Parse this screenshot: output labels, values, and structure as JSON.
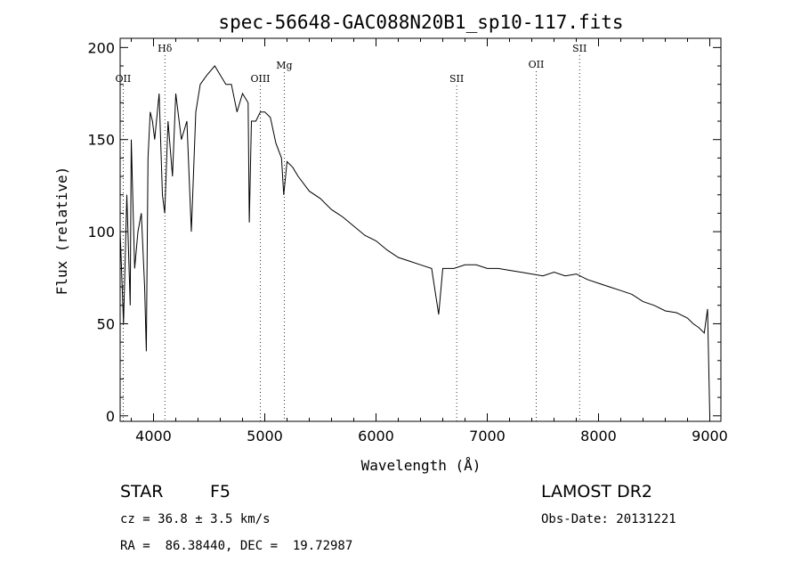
{
  "chart_data": {
    "type": "line",
    "title": "spec-56648-GAC088N20B1_sp10-117.fits",
    "xlabel": "Wavelength (Å)",
    "ylabel": "Flux (relative)",
    "xlim": [
      3700,
      9100
    ],
    "ylim": [
      -3,
      205
    ],
    "x_ticks": [
      4000,
      5000,
      6000,
      7000,
      8000,
      9000
    ],
    "y_ticks": [
      0,
      50,
      100,
      150,
      200
    ],
    "series": [
      {
        "x": [
          3700,
          3730,
          3760,
          3790,
          3800,
          3830,
          3860,
          3890,
          3920,
          3935,
          3950,
          3970,
          3990,
          4010,
          4050,
          4080,
          4101,
          4130,
          4170,
          4200,
          4250,
          4300,
          4340,
          4380,
          4420,
          4480,
          4550,
          4600,
          4650,
          4700,
          4750,
          4800,
          4850,
          4861,
          4880,
          4920,
          4960,
          5000,
          5050,
          5100,
          5150,
          5170,
          5200,
          5250,
          5300,
          5400,
          5500,
          5600,
          5700,
          5800,
          5900,
          6000,
          6100,
          6200,
          6300,
          6400,
          6500,
          6563,
          6600,
          6700,
          6800,
          6900,
          7000,
          7100,
          7200,
          7300,
          7400,
          7500,
          7600,
          7700,
          7800,
          7900,
          8000,
          8100,
          8200,
          8300,
          8400,
          8500,
          8600,
          8700,
          8800,
          8850,
          8900,
          8950,
          8980,
          9000
        ],
        "y": [
          100,
          50,
          120,
          60,
          150,
          80,
          100,
          110,
          70,
          35,
          140,
          165,
          160,
          150,
          175,
          120,
          110,
          160,
          130,
          175,
          150,
          160,
          100,
          165,
          180,
          185,
          190,
          185,
          180,
          180,
          165,
          175,
          170,
          105,
          160,
          160,
          165,
          165,
          162,
          148,
          140,
          120,
          138,
          135,
          130,
          122,
          118,
          112,
          108,
          103,
          98,
          95,
          90,
          86,
          84,
          82,
          80,
          55,
          80,
          80,
          82,
          82,
          80,
          80,
          79,
          78,
          77,
          76,
          78,
          76,
          77,
          74,
          72,
          70,
          68,
          66,
          62,
          60,
          57,
          56,
          53,
          50,
          48,
          45,
          58,
          0
        ]
      }
    ],
    "line_markers": [
      {
        "label": "OII",
        "x": 3727
      },
      {
        "label": "Hδ",
        "x": 4102
      },
      {
        "label": "OIII",
        "x": 4960
      },
      {
        "label": "Mg",
        "x": 5175
      },
      {
        "label": "SII",
        "x": 6725
      },
      {
        "label": "OII",
        "x": 7440
      },
      {
        "label": "SII",
        "x": 7830
      }
    ],
    "grid": false,
    "legend": "none"
  },
  "info": {
    "object_class": "STAR",
    "subclass": "F5",
    "survey": "LAMOST DR2",
    "redshift_text": "cz = 36.8 ± 3.5 km/s",
    "obs_date_text": "Obs-Date: 20131221",
    "coords_text": "RA =  86.38440, DEC =  19.72987"
  }
}
